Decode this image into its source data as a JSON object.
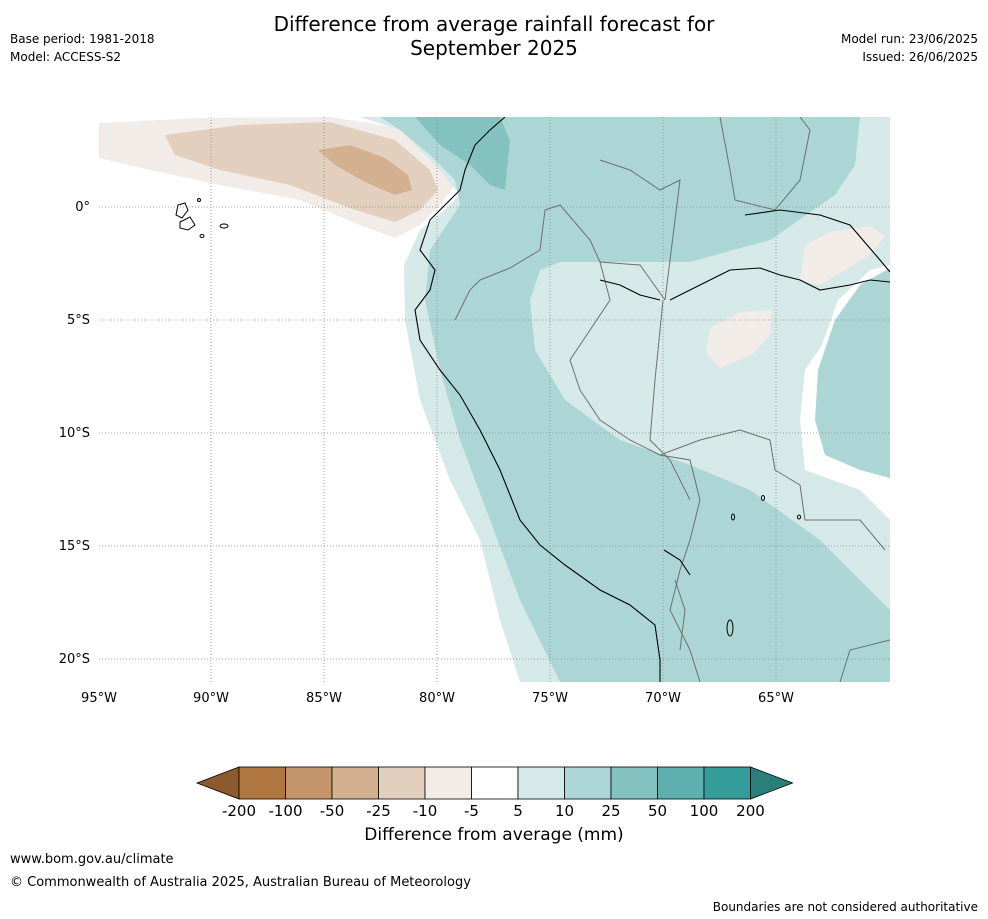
{
  "title_line1": "Difference from average rainfall forecast for",
  "title_line2": "September 2025",
  "meta": {
    "base_period": "Base period: 1981-2018",
    "model": "Model: ACCESS-S2",
    "model_run": "Model run: 23/06/2025",
    "issued": "Issued: 26/06/2025"
  },
  "map": {
    "lat_ticks": [
      "0°",
      "5°S",
      "10°S",
      "15°S",
      "20°S"
    ],
    "lon_ticks": [
      "95°W",
      "90°W",
      "85°W",
      "80°W",
      "75°W",
      "70°W",
      "65°W"
    ]
  },
  "colorbar": {
    "tick_labels": [
      "-200",
      "-100",
      "-50",
      "-25",
      "-10",
      "-5",
      "5",
      "10",
      "25",
      "50",
      "100",
      "200"
    ],
    "colors": [
      "#8c5a2c",
      "#b07840",
      "#c4956a",
      "#d3b08f",
      "#e3cfbd",
      "#f1ece8",
      "#ffffff",
      "#d5e9e8",
      "#acd6d6",
      "#83c2c1",
      "#5cafad",
      "#349d99",
      "#2b7f7b"
    ],
    "label": "Difference from average (mm)"
  },
  "footer": {
    "url": "www.bom.gov.au/climate",
    "copyright": "© Commonwealth of Australia 2025, Australian Bureau of Meteorology",
    "disclaimer": "Boundaries are not considered authoritative"
  }
}
